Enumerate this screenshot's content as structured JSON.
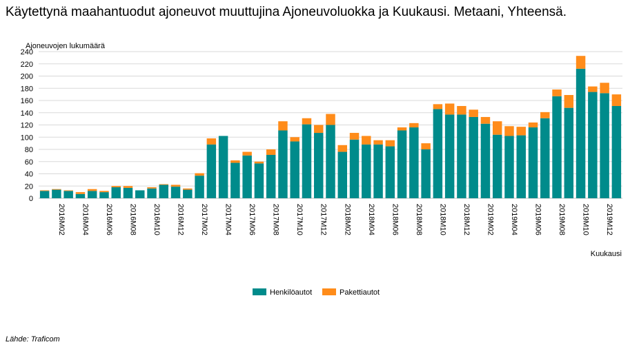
{
  "title": "Käytettynä maahantuodut ajoneuvot muuttujina Ajoneuvoluokka ja Kuukausi. Metaani, Yhteensä.",
  "source": "Lähde: Traficom",
  "colors": {
    "henkiloautot": "#008B8B",
    "pakettiautot": "#FF8C1A",
    "grid": "#d8d8d8"
  },
  "chart_data": {
    "type": "bar",
    "stacked": true,
    "ylabel": "Ajoneuvojen lukumäärä",
    "xlabel": "Kuukausi",
    "ylim": [
      0,
      240
    ],
    "yticks": [
      0,
      20,
      40,
      60,
      80,
      100,
      120,
      140,
      160,
      180,
      200,
      220,
      240
    ],
    "grid": true,
    "legend_position": "bottom",
    "categories": [
      "2016M01",
      "2016M02",
      "2016M03",
      "2016M04",
      "2016M05",
      "2016M06",
      "2016M07",
      "2016M08",
      "2016M09",
      "2016M10",
      "2016M11",
      "2016M12",
      "2017M01",
      "2017M02",
      "2017M03",
      "2017M04",
      "2017M05",
      "2017M06",
      "2017M07",
      "2017M08",
      "2017M09",
      "2017M10",
      "2017M11",
      "2017M12",
      "2018M01",
      "2018M02",
      "2018M03",
      "2018M04",
      "2018M05",
      "2018M06",
      "2018M07",
      "2018M08",
      "2018M09",
      "2018M10",
      "2018M11",
      "2018M12",
      "2019M01",
      "2019M02",
      "2019M03",
      "2019M04",
      "2019M05",
      "2019M06",
      "2019M07",
      "2019M08",
      "2019M09",
      "2019M10",
      "2019M11",
      "2019M12",
      "2020M01"
    ],
    "tick_labels": [
      "",
      "2016M02",
      "",
      "2016M04",
      "",
      "2016M06",
      "",
      "2016M08",
      "",
      "2016M10",
      "",
      "2016M12",
      "",
      "2017M02",
      "",
      "2017M04",
      "",
      "2017M06",
      "",
      "2017M08",
      "",
      "2017M10",
      "",
      "2017M12",
      "",
      "2018M02",
      "",
      "2018M04",
      "",
      "2018M06",
      "",
      "2018M08",
      "",
      "2018M10",
      "",
      "2018M12",
      "",
      "2019M02",
      "",
      "2019M04",
      "",
      "2019M06",
      "",
      "2019M08",
      "",
      "2019M10",
      "",
      "2019M12",
      ""
    ],
    "series": [
      {
        "name": "Henkilöautot",
        "values": [
          12,
          14,
          12,
          7,
          12,
          10,
          18,
          17,
          13,
          16,
          22,
          19,
          14,
          37,
          88,
          102,
          58,
          70,
          57,
          71,
          111,
          93,
          121,
          107,
          120,
          76,
          96,
          88,
          88,
          85,
          111,
          116,
          80,
          146,
          137,
          137,
          133,
          122,
          104,
          102,
          103,
          116,
          131,
          167,
          148,
          212,
          174,
          172,
          151
        ]
      },
      {
        "name": "Pakettiautot",
        "values": [
          1,
          1,
          1,
          3,
          3,
          2,
          2,
          3,
          0,
          2,
          1,
          3,
          2,
          4,
          10,
          0,
          4,
          6,
          3,
          9,
          15,
          7,
          10,
          13,
          18,
          11,
          11,
          14,
          7,
          10,
          5,
          7,
          10,
          8,
          18,
          14,
          12,
          11,
          22,
          16,
          14,
          8,
          10,
          11,
          21,
          21,
          9,
          17,
          19
        ]
      }
    ]
  }
}
